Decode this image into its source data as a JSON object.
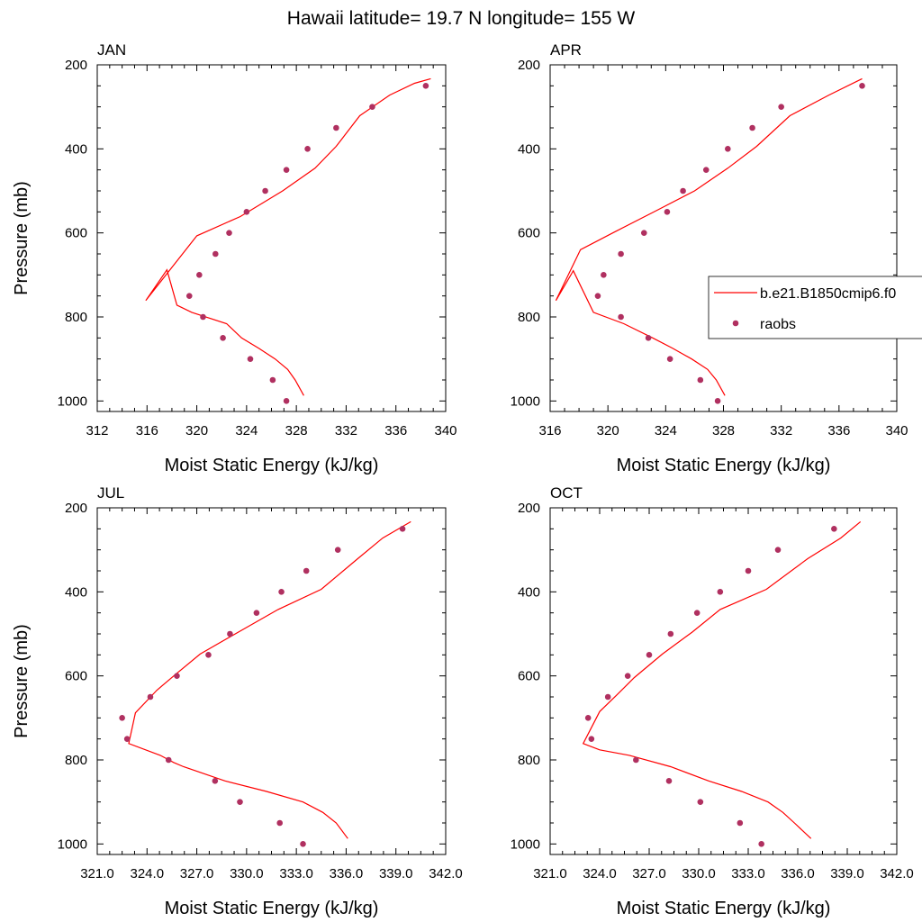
{
  "title": "Hawaii  latitude= 19.7 N longitude= 155 W",
  "colors": {
    "model": "#ff0000",
    "obs": "#b03060"
  },
  "legend": {
    "placement": "right of APR panel, overlapping",
    "model_label": "b.e21.B1850cmip6.f0",
    "obs_label": "raobs"
  },
  "chart_data": [
    {
      "type": "line",
      "panel_label": "JAN",
      "xlabel": "Moist Static Energy (kJ/kg)",
      "ylabel": "Pressure (mb)",
      "xlim": [
        312,
        340
      ],
      "ylim": [
        1025,
        200
      ],
      "xticks": [
        312,
        316,
        320,
        324,
        328,
        332,
        336,
        340
      ],
      "xtick_labels": [
        "312",
        "316",
        "320",
        "324",
        "328",
        "332",
        "336",
        "340"
      ],
      "yticks": [
        200,
        400,
        600,
        800,
        1000
      ],
      "ytick_labels": [
        "200",
        "400",
        "600",
        "800",
        "1000"
      ],
      "series": [
        {
          "name": "b.e21.B1850cmip6.f0",
          "kind": "line",
          "x": [
            328.6,
            327.9,
            327.3,
            326.3,
            325.0,
            323.6,
            322.4,
            319.6,
            318.4,
            317.6,
            315.9,
            320.0,
            323.5,
            326.9,
            329.5,
            331.2,
            333.1,
            335.5,
            337.5,
            338.8
          ],
          "y": [
            987,
            950,
            925,
            900,
            875,
            850,
            816,
            789,
            772,
            688,
            761,
            607,
            561,
            500,
            446,
            394,
            321,
            272,
            244,
            233
          ]
        },
        {
          "name": "raobs",
          "kind": "scatter",
          "x": [
            327.2,
            326.1,
            324.3,
            322.1,
            320.5,
            319.4,
            320.2,
            321.5,
            322.6,
            324.0,
            325.5,
            327.2,
            328.9,
            331.2,
            334.1,
            338.4
          ],
          "y": [
            1000,
            950,
            900,
            850,
            800,
            750,
            700,
            650,
            600,
            550,
            500,
            450,
            400,
            350,
            300,
            250
          ]
        }
      ]
    },
    {
      "type": "line",
      "panel_label": "APR",
      "xlabel": "Moist Static Energy (kJ/kg)",
      "ylabel": "",
      "xlim": [
        316,
        340
      ],
      "ylim": [
        1025,
        200
      ],
      "xticks": [
        316,
        320,
        324,
        328,
        332,
        336,
        340
      ],
      "xtick_labels": [
        "316",
        "320",
        "324",
        "328",
        "332",
        "336",
        "340"
      ],
      "yticks": [
        200,
        400,
        600,
        800,
        1000
      ],
      "ytick_labels": [
        "200",
        "400",
        "600",
        "800",
        "1000"
      ],
      "series": [
        {
          "name": "b.e21.B1850cmip6.f0",
          "kind": "line",
          "x": [
            328.1,
            327.5,
            326.9,
            325.8,
            324.5,
            323.1,
            321.1,
            319.0,
            317.6,
            316.4,
            318.1,
            320.5,
            323.3,
            326.0,
            328.3,
            330.3,
            332.6,
            335.3,
            337.6
          ],
          "y": [
            987,
            950,
            925,
            900,
            875,
            850,
            816,
            789,
            690,
            761,
            640,
            597,
            548,
            500,
            446,
            394,
            321,
            272,
            233
          ]
        },
        {
          "name": "raobs",
          "kind": "scatter",
          "x": [
            327.6,
            326.4,
            324.3,
            322.8,
            320.9,
            319.3,
            319.7,
            320.9,
            322.5,
            324.1,
            325.2,
            326.8,
            328.3,
            330.0,
            332.0,
            337.6
          ],
          "y": [
            1000,
            950,
            900,
            850,
            800,
            750,
            700,
            650,
            600,
            550,
            500,
            450,
            400,
            350,
            300,
            250
          ]
        }
      ]
    },
    {
      "type": "line",
      "panel_label": "JUL",
      "xlabel": "Moist Static Energy (kJ/kg)",
      "ylabel": "Pressure (mb)",
      "xlim": [
        321,
        342
      ],
      "ylim": [
        1025,
        200
      ],
      "xticks": [
        321,
        324,
        327,
        330,
        333,
        336,
        339,
        342
      ],
      "xtick_labels": [
        "321.0",
        "324.0",
        "327.0",
        "330.0",
        "333.0",
        "336.0",
        "339.0",
        "342.0"
      ],
      "yticks": [
        200,
        400,
        600,
        800,
        1000
      ],
      "ytick_labels": [
        "200",
        "400",
        "600",
        "800",
        "1000"
      ],
      "series": [
        {
          "name": "b.e21.B1850cmip6.f0",
          "kind": "line",
          "x": [
            336.1,
            335.4,
            334.6,
            333.4,
            331.2,
            328.7,
            326.2,
            325.6,
            324.8,
            322.9,
            323.3,
            324.6,
            325.7,
            327.2,
            329.5,
            331.9,
            334.5,
            336.7,
            338.2,
            339.9
          ],
          "y": [
            987,
            950,
            925,
            900,
            875,
            850,
            816,
            806,
            789,
            761,
            688,
            634,
            597,
            548,
            496,
            442,
            394,
            321,
            272,
            233
          ]
        },
        {
          "name": "raobs",
          "kind": "scatter",
          "x": [
            333.4,
            332.0,
            329.6,
            328.1,
            325.3,
            322.8,
            322.5,
            324.2,
            325.8,
            327.7,
            329.0,
            330.6,
            332.1,
            333.6,
            335.5,
            339.4
          ],
          "y": [
            1000,
            950,
            900,
            850,
            800,
            750,
            700,
            650,
            600,
            550,
            500,
            450,
            400,
            350,
            300,
            250
          ]
        }
      ]
    },
    {
      "type": "line",
      "panel_label": "OCT",
      "xlabel": "Moist Static Energy (kJ/kg)",
      "ylabel": "",
      "xlim": [
        321,
        342
      ],
      "ylim": [
        1025,
        200
      ],
      "xticks": [
        321,
        324,
        327,
        330,
        333,
        336,
        339,
        342
      ],
      "xtick_labels": [
        "321.0",
        "324.0",
        "327.0",
        "330.0",
        "333.0",
        "336.0",
        "339.0",
        "342.0"
      ],
      "yticks": [
        200,
        400,
        600,
        800,
        1000
      ],
      "ytick_labels": [
        "200",
        "400",
        "600",
        "800",
        "1000"
      ],
      "series": [
        {
          "name": "b.e21.B1850cmip6.f0",
          "kind": "line",
          "x": [
            336.8,
            335.8,
            335.1,
            334.2,
            332.6,
            330.6,
            328.3,
            325.8,
            324.0,
            323.0,
            324.0,
            325.0,
            326.1,
            327.8,
            329.6,
            331.3,
            334.1,
            336.6,
            338.6,
            339.8
          ],
          "y": [
            987,
            950,
            925,
            900,
            875,
            850,
            816,
            789,
            776,
            761,
            685,
            647,
            604,
            548,
            496,
            442,
            394,
            321,
            272,
            233
          ]
        },
        {
          "name": "raobs",
          "kind": "scatter",
          "x": [
            333.8,
            332.5,
            330.1,
            328.2,
            326.2,
            323.5,
            323.3,
            324.5,
            325.7,
            327.0,
            328.3,
            329.9,
            331.3,
            333.0,
            334.8,
            338.2
          ],
          "y": [
            1000,
            950,
            900,
            850,
            800,
            750,
            700,
            650,
            600,
            550,
            500,
            450,
            400,
            350,
            300,
            250
          ]
        }
      ]
    }
  ]
}
